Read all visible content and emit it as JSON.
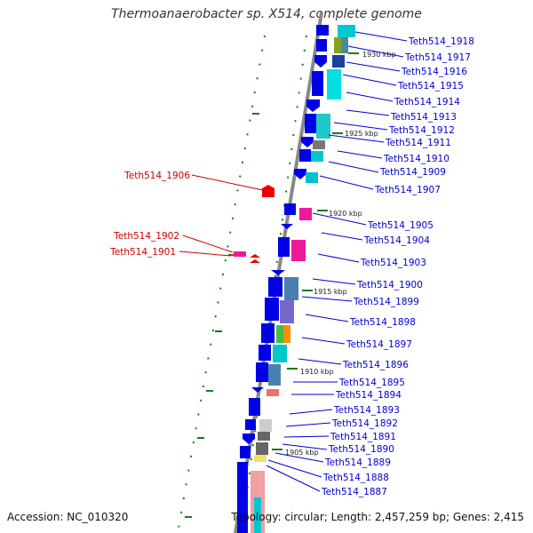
{
  "title": "Thermoanaerobacter sp. X514, complete genome",
  "accession": "Accession: NC_010320",
  "topology": "Topology: circular; Length: 2,457,259 bp; Genes: 2,415",
  "colors": {
    "forward_gene": "#0000e6",
    "label_blue": "#0000cc",
    "label_red": "#cc0000",
    "highlight_gene": "#ee0000",
    "backbone": "#888888",
    "tick_green": "#1a7a1a"
  },
  "tick_labels": [
    "1930 kbp",
    "1925 kbp",
    "1920 kbp",
    "1915 kbp",
    "1910 kbp",
    "1905 kbp"
  ],
  "genes_right": [
    "Teth514_1918",
    "Teth514_1917",
    "Teth514_1916",
    "Teth514_1915",
    "Teth514_1914",
    "Teth514_1913",
    "Teth514_1912",
    "Teth514_1911",
    "Teth514_1910",
    "Teth514_1909",
    "Teth514_1907",
    "Teth514_1905",
    "Teth514_1904",
    "Teth514_1903",
    "Teth514_1900",
    "Teth514_1899",
    "Teth514_1898",
    "Teth514_1897",
    "Teth514_1896",
    "Teth514_1895",
    "Teth514_1894",
    "Teth514_1893",
    "Teth514_1892",
    "Teth514_1891",
    "Teth514_1890",
    "Teth514_1889",
    "Teth514_1888",
    "Teth514_1887"
  ],
  "genes_left": [
    "Teth514_1906",
    "Teth514_1902",
    "Teth514_1901"
  ]
}
